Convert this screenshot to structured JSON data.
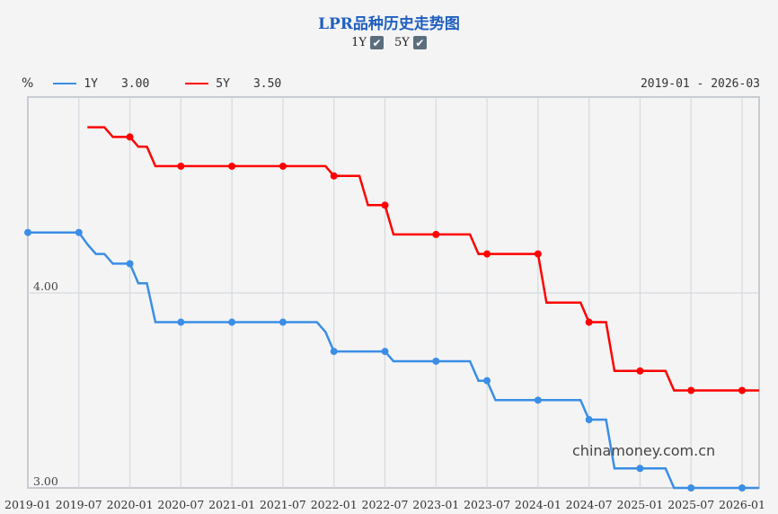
{
  "title": "LPR品种历史走势图",
  "toggles": [
    {
      "label": "1Y",
      "checked": true
    },
    {
      "label": "5Y",
      "checked": true
    }
  ],
  "legend": {
    "unit": "%",
    "series": [
      {
        "name": "1Y",
        "value": "3.00",
        "color": "#3a8ee6"
      },
      {
        "name": "5Y",
        "value": "3.50",
        "color": "#ff0000"
      }
    ],
    "range": "2019-01 - 2026-03"
  },
  "watermark": "chinamoney.com.cn",
  "chart_data": {
    "type": "line",
    "title": "LPR品种历史走势图",
    "xlabel": "",
    "ylabel": "%",
    "ylim": [
      3.0,
      4.92
    ],
    "xlim": [
      "2019-01",
      "2026-03"
    ],
    "grid": true,
    "legend_position": "top-left",
    "x_ticks": [
      "2019-01",
      "2019-07",
      "2020-01",
      "2020-07",
      "2021-01",
      "2021-07",
      "2022-01",
      "2022-07",
      "2023-01",
      "2023-07",
      "2024-01",
      "2024-07",
      "2025-01",
      "2025-07",
      "2026-01"
    ],
    "y_ticks": [
      "3.00",
      "4.00"
    ],
    "series": [
      {
        "name": "1Y",
        "color": "#3a8ee6",
        "points": [
          [
            "2019-01",
            4.31
          ],
          [
            "2019-07",
            4.31
          ],
          [
            "2019-08",
            4.25
          ],
          [
            "2019-09",
            4.2
          ],
          [
            "2019-10",
            4.2
          ],
          [
            "2019-11",
            4.15
          ],
          [
            "2020-01",
            4.15
          ],
          [
            "2020-02",
            4.05
          ],
          [
            "2020-03",
            4.05
          ],
          [
            "2020-04",
            3.85
          ],
          [
            "2020-07",
            3.85
          ],
          [
            "2021-01",
            3.85
          ],
          [
            "2021-07",
            3.85
          ],
          [
            "2021-11",
            3.85
          ],
          [
            "2021-12",
            3.8
          ],
          [
            "2022-01",
            3.7
          ],
          [
            "2022-07",
            3.7
          ],
          [
            "2022-08",
            3.65
          ],
          [
            "2023-01",
            3.65
          ],
          [
            "2023-05",
            3.65
          ],
          [
            "2023-06",
            3.55
          ],
          [
            "2023-07",
            3.55
          ],
          [
            "2023-08",
            3.45
          ],
          [
            "2024-01",
            3.45
          ],
          [
            "2024-06",
            3.45
          ],
          [
            "2024-07",
            3.35
          ],
          [
            "2024-09",
            3.35
          ],
          [
            "2024-10",
            3.1
          ],
          [
            "2025-01",
            3.1
          ],
          [
            "2025-04",
            3.1
          ],
          [
            "2025-05",
            3.0
          ],
          [
            "2025-07",
            3.0
          ],
          [
            "2026-01",
            3.0
          ],
          [
            "2026-03",
            3.0
          ]
        ],
        "markers": [
          "2019-01",
          "2019-07",
          "2020-01",
          "2020-07",
          "2021-01",
          "2021-07",
          "2022-01",
          "2022-07",
          "2023-01",
          "2023-07",
          "2024-01",
          "2024-07",
          "2025-01",
          "2025-07",
          "2026-01"
        ]
      },
      {
        "name": "5Y",
        "color": "#ff0000",
        "points": [
          [
            "2019-08",
            4.85
          ],
          [
            "2019-10",
            4.85
          ],
          [
            "2019-11",
            4.8
          ],
          [
            "2020-01",
            4.8
          ],
          [
            "2020-02",
            4.75
          ],
          [
            "2020-03",
            4.75
          ],
          [
            "2020-04",
            4.65
          ],
          [
            "2020-07",
            4.65
          ],
          [
            "2021-01",
            4.65
          ],
          [
            "2021-07",
            4.65
          ],
          [
            "2021-12",
            4.65
          ],
          [
            "2022-01",
            4.6
          ],
          [
            "2022-04",
            4.6
          ],
          [
            "2022-05",
            4.45
          ],
          [
            "2022-07",
            4.45
          ],
          [
            "2022-08",
            4.3
          ],
          [
            "2023-01",
            4.3
          ],
          [
            "2023-05",
            4.3
          ],
          [
            "2023-06",
            4.2
          ],
          [
            "2023-07",
            4.2
          ],
          [
            "2024-01",
            4.2
          ],
          [
            "2024-02",
            3.95
          ],
          [
            "2024-06",
            3.95
          ],
          [
            "2024-07",
            3.85
          ],
          [
            "2024-09",
            3.85
          ],
          [
            "2024-10",
            3.6
          ],
          [
            "2025-01",
            3.6
          ],
          [
            "2025-04",
            3.6
          ],
          [
            "2025-05",
            3.5
          ],
          [
            "2025-07",
            3.5
          ],
          [
            "2026-01",
            3.5
          ],
          [
            "2026-03",
            3.5
          ]
        ],
        "markers": [
          "2020-01",
          "2020-07",
          "2021-01",
          "2021-07",
          "2022-01",
          "2022-07",
          "2023-01",
          "2023-07",
          "2024-01",
          "2024-07",
          "2025-01",
          "2025-07",
          "2026-01"
        ]
      }
    ]
  }
}
